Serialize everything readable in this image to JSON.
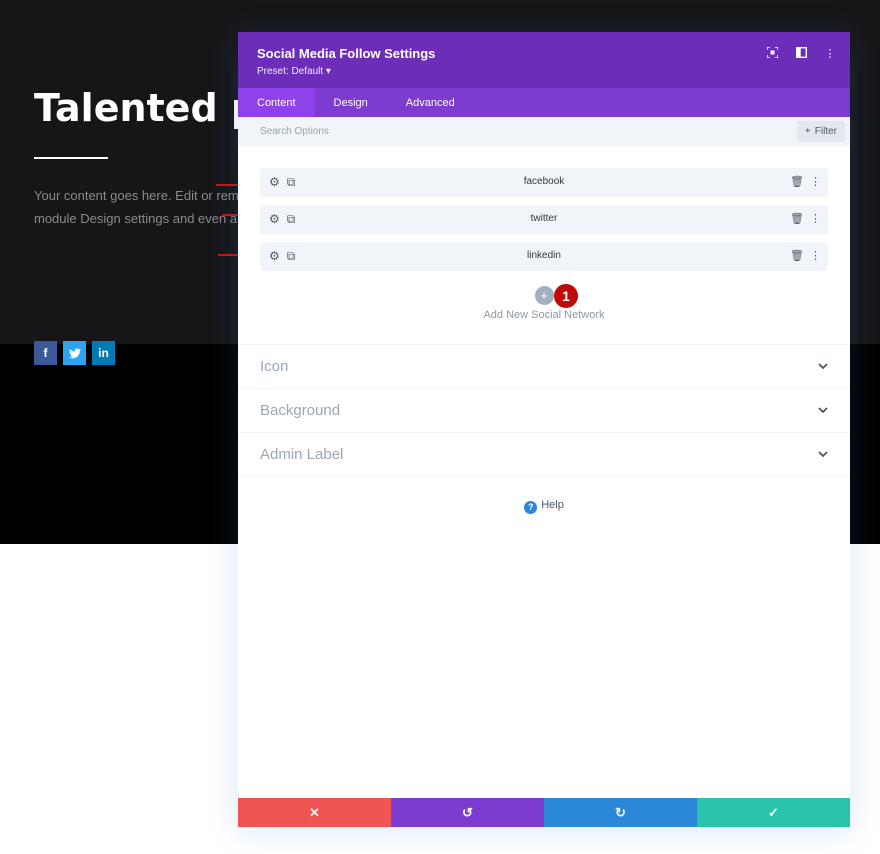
{
  "background_page": {
    "hero_title": "Talented peo",
    "hero_text": "Your content goes here. Edit or remo\nmodule Design settings and even ap",
    "social_icons": [
      {
        "name": "facebook-icon",
        "glyph": "f",
        "color": "#3b5998"
      },
      {
        "name": "twitter-icon",
        "glyph": "t",
        "color": "#2ea3f2"
      },
      {
        "name": "linkedin-icon",
        "glyph": "in",
        "color": "#007bb6"
      }
    ]
  },
  "modal": {
    "title": "Social Media Follow Settings",
    "preset": "Preset: Default ▾",
    "header_icons": [
      "focus-icon",
      "split-view-icon",
      "more-options-icon"
    ],
    "tabs": [
      {
        "label": "Content",
        "active": true
      },
      {
        "label": "Design",
        "active": false
      },
      {
        "label": "Advanced",
        "active": false
      }
    ],
    "search": {
      "placeholder": "Search Options",
      "filter_label": "Filter"
    },
    "networks": [
      {
        "label": "facebook"
      },
      {
        "label": "twitter"
      },
      {
        "label": "linkedin"
      }
    ],
    "add_label": "Add New Social Network",
    "annotation_badge": "1",
    "sections": [
      {
        "label": "Icon"
      },
      {
        "label": "Background"
      },
      {
        "label": "Admin Label"
      }
    ],
    "help_label": "Help",
    "footer": {
      "cancel_color": "#ef5555",
      "undo_color": "#7e3bd0",
      "redo_color": "#2b87da",
      "save_color": "#29c4a9"
    }
  },
  "colors": {
    "header_purple": "#6c2eb9",
    "tabs_purple": "#7e3bd0",
    "active_tab": "#8f42ec",
    "annotation_red": "#d10f0f"
  }
}
